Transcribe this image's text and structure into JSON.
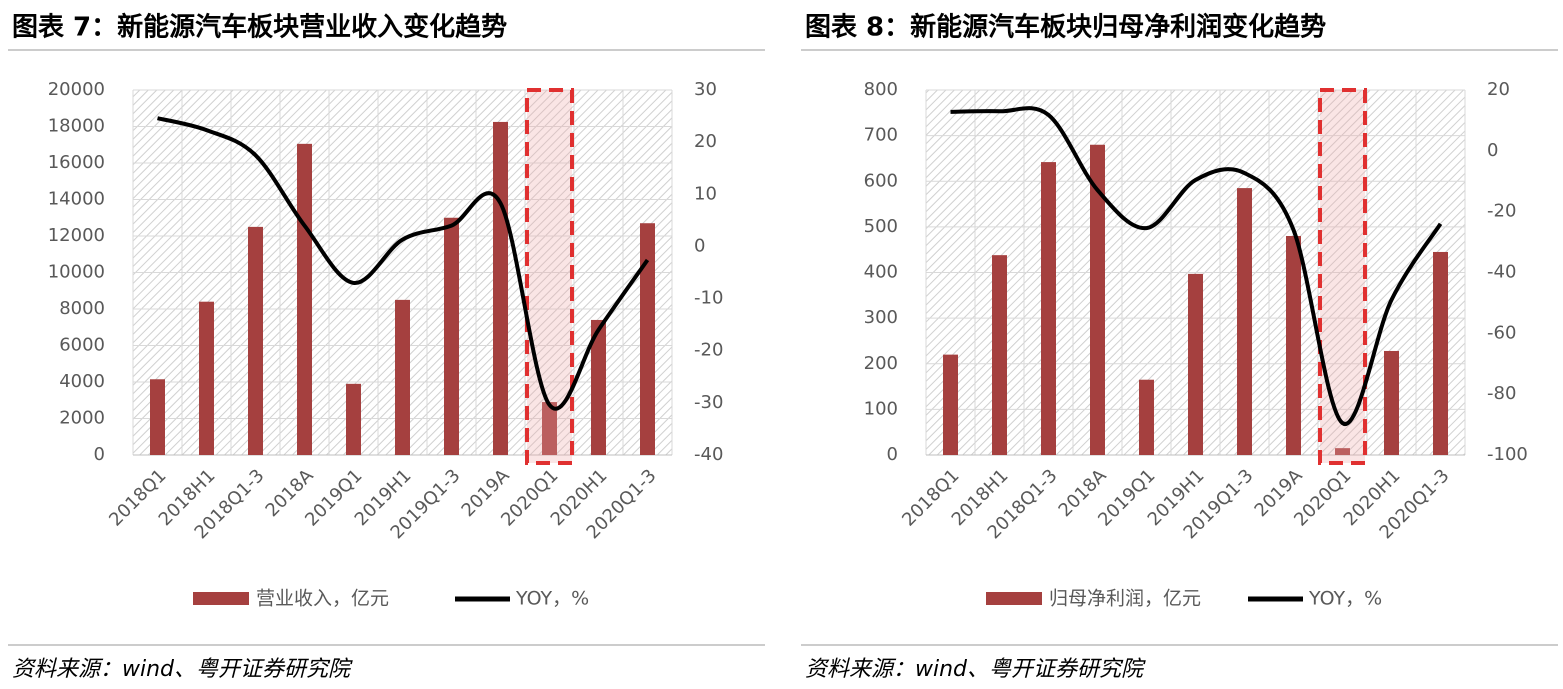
{
  "chart_data": [
    {
      "type": "bar_line",
      "title": "图表 7：新能源汽车板块营业收入变化趋势",
      "source": "资料来源：wind、粤开证券研究院",
      "categories": [
        "2018Q1",
        "2018H1",
        "2018Q1-3",
        "2018A",
        "2019Q1",
        "2019H1",
        "2019Q1-3",
        "2019A",
        "2020Q1",
        "2020H1",
        "2020Q1-3"
      ],
      "series": [
        {
          "name": "营业收入，亿元",
          "color": "#a5403f",
          "values": [
            4150,
            8400,
            12500,
            17050,
            3900,
            8500,
            13000,
            18250,
            2900,
            7400,
            12700
          ]
        },
        {
          "name": "YOY，%",
          "color": "#000000",
          "axis": "y2",
          "values": [
            24.6,
            22.3,
            17.5,
            4,
            -7,
            1.3,
            4,
            8.3,
            -30.4,
            -16,
            -2.6
          ]
        }
      ],
      "ylim": [
        0,
        20000
      ],
      "yticks": [
        0,
        2000,
        4000,
        6000,
        8000,
        10000,
        12000,
        14000,
        16000,
        18000,
        20000
      ],
      "y2lim": [
        -40,
        30
      ],
      "y2ticks": [
        -40,
        -30,
        -20,
        -10,
        0,
        10,
        20,
        30
      ],
      "negative_tick_color": "#e00000",
      "grid": true
    },
    {
      "type": "bar_line",
      "title": "图表 8：新能源汽车板块归母净利润变化趋势",
      "source": "资料来源：wind、粤开证券研究院",
      "categories": [
        "2018Q1",
        "2018H1",
        "2018Q1-3",
        "2018A",
        "2019Q1",
        "2019H1",
        "2019Q1-3",
        "2019A",
        "2020Q1",
        "2020H1",
        "2020Q1-3"
      ],
      "series": [
        {
          "name": "归母净利润，亿元",
          "color": "#a5403f",
          "values": [
            220,
            438,
            642,
            680,
            165,
            397,
            585,
            480,
            15,
            228,
            445
          ]
        },
        {
          "name": "YOY，%",
          "color": "#000000",
          "axis": "y2",
          "values": [
            12.8,
            13,
            11.8,
            -12.9,
            -25.4,
            -9.6,
            -7.3,
            -26,
            -89.5,
            -49,
            -24
          ]
        }
      ],
      "ylim": [
        0,
        800
      ],
      "yticks": [
        0,
        100,
        200,
        300,
        400,
        500,
        600,
        700,
        800
      ],
      "y2lim": [
        -100,
        20
      ],
      "y2ticks": [
        -100,
        -80,
        -60,
        -40,
        -20,
        0,
        20
      ],
      "negative_tick_color": "#e00000",
      "grid": true
    }
  ]
}
